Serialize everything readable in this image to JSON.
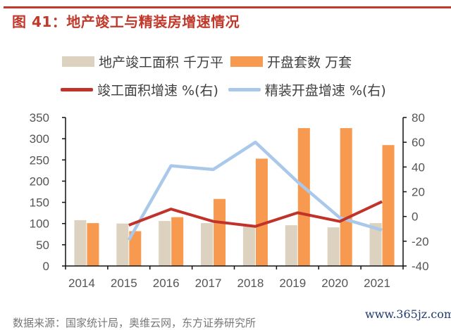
{
  "header": {
    "title": "图 41：地产竣工与精装房增速情况"
  },
  "source_text": "数据来源：国家统计局，奥维云网，东方证券研究所",
  "watermark": "www.365jz.com",
  "chart_data": {
    "type": "bar+line",
    "title": "图 41：地产竣工与精装房增速情况",
    "categories": [
      "2014",
      "2015",
      "2016",
      "2017",
      "2018",
      "2019",
      "2020",
      "2021"
    ],
    "left_axis": {
      "ylim": [
        0,
        350
      ],
      "ticks": [
        "0",
        "50",
        "100",
        "150",
        "200",
        "250",
        "300",
        "350"
      ]
    },
    "right_axis": {
      "ylim": [
        -40,
        80
      ],
      "ticks": [
        "-40",
        "-20",
        "0",
        "20",
        "40",
        "60",
        "80"
      ]
    },
    "grid": false,
    "legend_position": "top",
    "series": [
      {
        "name": "地产竣工面积 千万平",
        "type": "bar",
        "axis": "left",
        "color": "#dcd2bf",
        "values": [
          108,
          100,
          106,
          101,
          93,
          96,
          91,
          101
        ]
      },
      {
        "name": "开盘套数 万套",
        "type": "bar",
        "axis": "left",
        "color": "#f79a4f",
        "values": [
          101,
          82,
          115,
          158,
          253,
          325,
          325,
          285
        ]
      },
      {
        "name": "竣工面积增速 %(右)",
        "type": "line",
        "axis": "right",
        "color": "#c0322a",
        "values": [
          null,
          -7,
          6,
          -4,
          -8,
          3,
          -4,
          12
        ]
      },
      {
        "name": "精装开盘增速 %(右)",
        "type": "line",
        "axis": "right",
        "color": "#a9c8ea",
        "values": [
          null,
          -19,
          41,
          38,
          60,
          28,
          -1,
          -11
        ]
      }
    ]
  }
}
